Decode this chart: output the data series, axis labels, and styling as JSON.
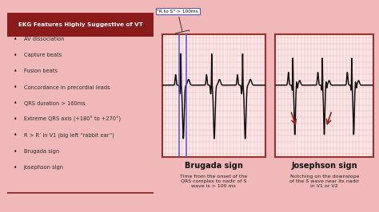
{
  "bg_color": "#f0b8b8",
  "left_box": {
    "header": "EKG Features Highly Suggestive of VT",
    "header_bg": "#8b1a1a",
    "header_color": "#ffffff",
    "box_bg": "#f5d8d8",
    "box_border": "#8b1a1a",
    "items": [
      "AV dissociation",
      "Capture beats",
      "Fusion beats",
      "Concordance in precordial leads",
      "QRS duration > 160ms",
      "Extreme QRS axis (+180° to +270°)",
      "R > R’ in V1 (big left “rabbit ear”)",
      "Brugada sign",
      "Josephson sign"
    ]
  },
  "brugada": {
    "label": "Brugada sign",
    "desc": "Time from the onset of the\nQRS complex to nadir of S\nwave is > 100 ms",
    "annotation": "\"R to S\" > 100ms",
    "ecg_bg": "#fce8e8",
    "ecg_border": "#9b3030",
    "grid_color": "#e8a8a8",
    "line_color": "#111111",
    "marker_color": "#5555dd"
  },
  "josephson": {
    "label": "Josephson sign",
    "desc": "Notching on the downslope\nof the S wave near its nadir\nin V1 or V2",
    "ecg_bg": "#fce8e8",
    "ecg_border": "#9b3030",
    "grid_color": "#e8a8a8",
    "line_color": "#111111",
    "arrow_color": "#8b2020"
  }
}
